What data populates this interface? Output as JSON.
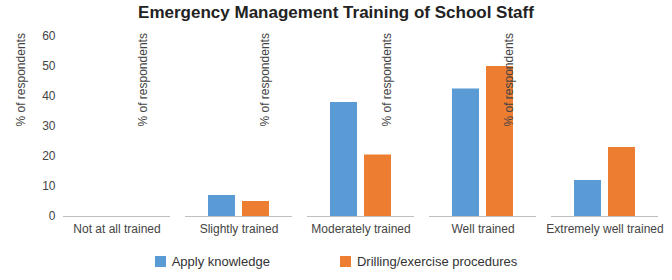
{
  "chart_data": {
    "type": "bar",
    "title": "Emergency Management Training of School Staff",
    "ylabel": "% of respondents",
    "categories": [
      "Not at all trained",
      "Slightly trained",
      "Moderately trained",
      "Well trained",
      "Extremely well trained"
    ],
    "series": [
      {
        "name": "Apply knowledge",
        "color": "#5b9bd5",
        "values": [
          0,
          7,
          38,
          42.5,
          12
        ]
      },
      {
        "name": "Drilling/exercise procedures",
        "color": "#ed7d31",
        "values": [
          0,
          5,
          20.5,
          50,
          23
        ]
      }
    ],
    "ylim": [
      0,
      60
    ],
    "yticks": [
      0,
      10,
      20,
      30,
      40,
      50,
      60
    ],
    "grid": false,
    "legend": "bottom"
  }
}
